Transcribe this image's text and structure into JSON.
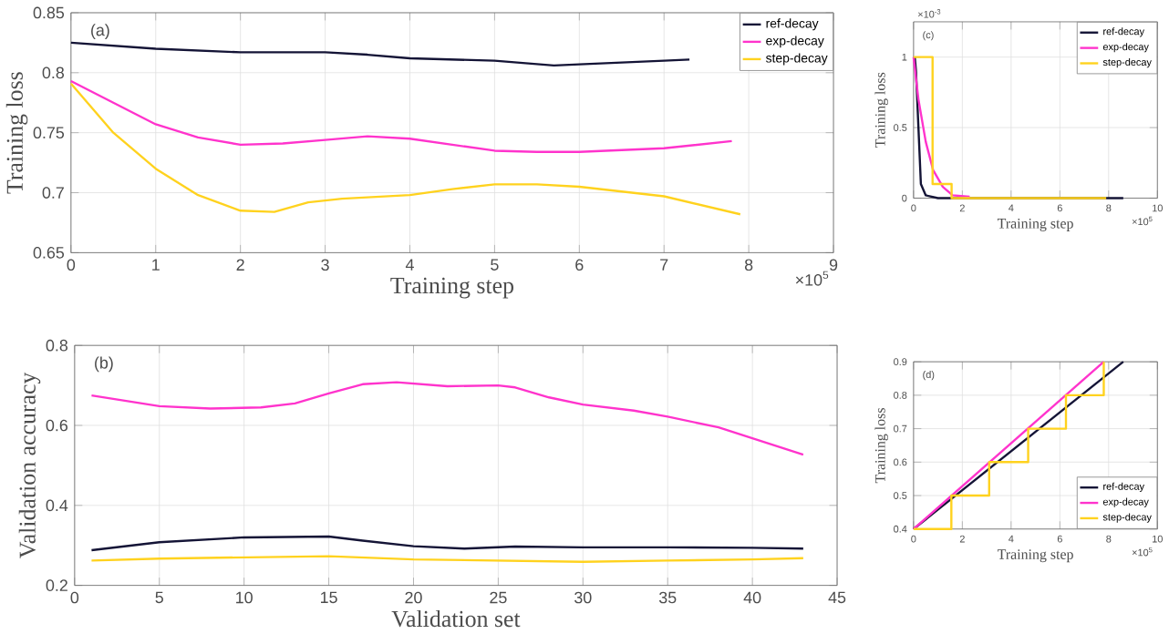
{
  "chart_data": [
    {
      "type": "line",
      "xlabel": "Training step",
      "ylabel": "Training loss",
      "annotations": [
        "(a)",
        "×10$^{5}$"
      ],
      "xlim": [
        0,
        9
      ],
      "ylim": [
        0.65,
        0.85
      ],
      "xticks": [
        0,
        1,
        2,
        3,
        4,
        5,
        6,
        7,
        8,
        9
      ],
      "yticks": [
        0.65,
        0.7,
        0.75,
        0.8,
        0.85
      ],
      "grid": true,
      "legend": "top right",
      "series": [
        {
          "name": "ref-decay",
          "color": "#141436",
          "x": [
            0,
            1,
            2,
            3,
            3.5,
            4,
            5,
            5.7,
            6,
            7,
            7.3
          ],
          "values": [
            0.825,
            0.82,
            0.817,
            0.817,
            0.815,
            0.812,
            0.81,
            0.806,
            0.807,
            0.81,
            0.811
          ]
        },
        {
          "name": "exp-decay",
          "color": "#ff33cc",
          "x": [
            0,
            0.5,
            1,
            1.5,
            2,
            2.5,
            3,
            3.5,
            4,
            4.5,
            5,
            5.5,
            6,
            7,
            7.8
          ],
          "values": [
            0.793,
            0.775,
            0.757,
            0.746,
            0.74,
            0.741,
            0.744,
            0.747,
            0.745,
            0.74,
            0.735,
            0.734,
            0.734,
            0.737,
            0.743
          ]
        },
        {
          "name": "step-decay",
          "color": "#ffd21e",
          "x": [
            0,
            0.5,
            1,
            1.5,
            2,
            2.4,
            2.8,
            3.2,
            4,
            4.5,
            5,
            5.5,
            6,
            7,
            7.9
          ],
          "values": [
            0.791,
            0.75,
            0.72,
            0.698,
            0.685,
            0.684,
            0.692,
            0.695,
            0.698,
            0.703,
            0.707,
            0.707,
            0.705,
            0.697,
            0.682
          ]
        }
      ]
    },
    {
      "type": "line",
      "xlabel": "Validation set",
      "ylabel": "Validation accuracy",
      "annotations": [
        "(b)"
      ],
      "xlim": [
        0,
        45
      ],
      "ylim": [
        0.2,
        0.8
      ],
      "xticks": [
        0,
        5,
        10,
        15,
        20,
        25,
        30,
        35,
        40,
        45
      ],
      "yticks": [
        0.2,
        0.4,
        0.6,
        0.8
      ],
      "grid": true,
      "series": [
        {
          "color": "#141436",
          "x": [
            1,
            5,
            10,
            15,
            17,
            20,
            23,
            26,
            30,
            35,
            40,
            43
          ],
          "values": [
            0.288,
            0.308,
            0.32,
            0.322,
            0.312,
            0.298,
            0.292,
            0.297,
            0.295,
            0.295,
            0.294,
            0.292
          ]
        },
        {
          "color": "#ff33cc",
          "x": [
            1,
            5,
            8,
            11,
            13,
            15,
            17,
            19,
            22,
            25,
            26,
            28,
            30,
            33,
            35,
            38,
            40,
            43
          ],
          "values": [
            0.675,
            0.648,
            0.642,
            0.645,
            0.655,
            0.68,
            0.703,
            0.708,
            0.698,
            0.7,
            0.695,
            0.67,
            0.652,
            0.637,
            0.622,
            0.595,
            0.568,
            0.527
          ]
        },
        {
          "color": "#ffd21e",
          "x": [
            1,
            5,
            10,
            15,
            20,
            25,
            30,
            35,
            40,
            43
          ],
          "values": [
            0.262,
            0.267,
            0.27,
            0.273,
            0.265,
            0.262,
            0.259,
            0.262,
            0.265,
            0.268
          ]
        }
      ]
    },
    {
      "type": "line",
      "xlabel": "Training step",
      "ylabel": "Training loss",
      "annotations": [
        "(c)",
        "×10$^{5}$",
        "×10$^{-3}$"
      ],
      "xlim": [
        0,
        10
      ],
      "ylim": [
        0,
        1.25
      ],
      "xticks": [
        0,
        2,
        4,
        6,
        8,
        10
      ],
      "yticks": [
        0,
        0.5,
        1
      ],
      "grid": true,
      "legend": "top right",
      "series": [
        {
          "name": "ref-decay",
          "color": "#141436",
          "x": [
            0.05,
            0.1,
            0.2,
            0.3,
            0.5,
            1,
            8.6
          ],
          "values": [
            1,
            0.9,
            0.5,
            0.1,
            0.02,
            0,
            0
          ]
        },
        {
          "name": "exp-decay",
          "color": "#ff33cc",
          "x": [
            0,
            0.2,
            0.5,
            0.8,
            1.2,
            1.6,
            2.3
          ],
          "values": [
            1,
            0.7,
            0.4,
            0.2,
            0.08,
            0.02,
            0.01
          ]
        },
        {
          "name": "step-decay",
          "color": "#ffd21e",
          "x": [
            0,
            0.78,
            0.78,
            1.56,
            1.56,
            7.9
          ],
          "values": [
            1,
            1,
            0.1,
            0.1,
            0,
            0
          ]
        }
      ]
    },
    {
      "type": "line",
      "xlabel": "Training step",
      "ylabel": "Training loss",
      "annotations": [
        "(d)",
        "×10$^{5}$"
      ],
      "xlim": [
        0,
        10
      ],
      "ylim": [
        0.4,
        0.9
      ],
      "xticks": [
        0,
        2,
        4,
        6,
        8,
        10
      ],
      "yticks": [
        0.4,
        0.5,
        0.6,
        0.7,
        0.8,
        0.9
      ],
      "grid": true,
      "legend": "bottom right",
      "series": [
        {
          "name": "ref-decay",
          "color": "#141436",
          "x": [
            0,
            8.6
          ],
          "values": [
            0.4,
            0.9
          ]
        },
        {
          "name": "exp-decay",
          "color": "#ff33cc",
          "x": [
            0,
            7.8
          ],
          "values": [
            0.4,
            0.9
          ]
        },
        {
          "name": "step-decay",
          "color": "#ffd21e",
          "x": [
            0,
            1.55,
            1.55,
            3.1,
            3.1,
            4.7,
            4.7,
            6.25,
            6.25,
            7.8,
            7.8
          ],
          "values": [
            0.4,
            0.4,
            0.5,
            0.5,
            0.6,
            0.6,
            0.7,
            0.7,
            0.8,
            0.8,
            0.9
          ]
        }
      ]
    }
  ]
}
